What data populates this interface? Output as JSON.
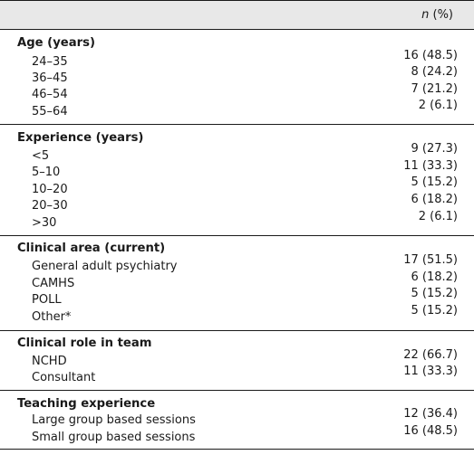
{
  "header": {
    "n_label": "n",
    "pct_label": "(%)"
  },
  "sections": [
    {
      "title": "Age (years)",
      "rows": [
        {
          "label": "24–35",
          "value": "16 (48.5)"
        },
        {
          "label": "36–45",
          "value": "8 (24.2)"
        },
        {
          "label": "46–54",
          "value": "7 (21.2)"
        },
        {
          "label": "55–64",
          "value": "2 (6.1)"
        }
      ]
    },
    {
      "title": "Experience (years)",
      "rows": [
        {
          "label": "<5",
          "value": "9 (27.3)"
        },
        {
          "label": "5–10",
          "value": "11 (33.3)"
        },
        {
          "label": "10–20",
          "value": "5 (15.2)"
        },
        {
          "label": "20–30",
          "value": "6 (18.2)"
        },
        {
          "label": ">30",
          "value": "2 (6.1)"
        }
      ]
    },
    {
      "title": "Clinical area (current)",
      "rows": [
        {
          "label": "General adult psychiatry",
          "value": "17 (51.5)"
        },
        {
          "label": "CAMHS",
          "value": "6 (18.2)"
        },
        {
          "label": "POLL",
          "value": "5 (15.2)"
        },
        {
          "label": "Other*",
          "value": "5 (15.2)"
        }
      ]
    },
    {
      "title": "Clinical role in team",
      "rows": [
        {
          "label": "NCHD",
          "value": "22 (66.7)"
        },
        {
          "label": "Consultant",
          "value": "11 (33.3)"
        }
      ]
    },
    {
      "title": "Teaching experience",
      "rows": [
        {
          "label": "Large group based sessions",
          "value": "12 (36.4)"
        },
        {
          "label": "Small group based sessions",
          "value": "16 (48.5)"
        }
      ]
    }
  ]
}
